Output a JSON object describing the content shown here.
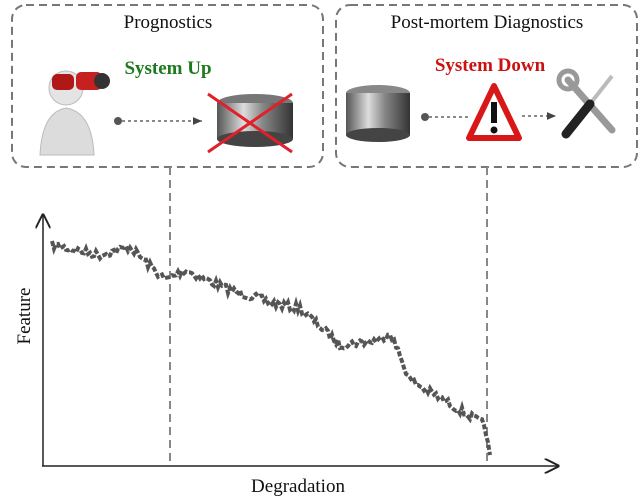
{
  "left_panel": {
    "title": "Prognostics",
    "status": "System Up"
  },
  "right_panel": {
    "title": "Post-mortem Diagnostics",
    "status": "System Down"
  },
  "plot": {
    "y_label": "Feature",
    "x_label": "Degradation"
  }
}
